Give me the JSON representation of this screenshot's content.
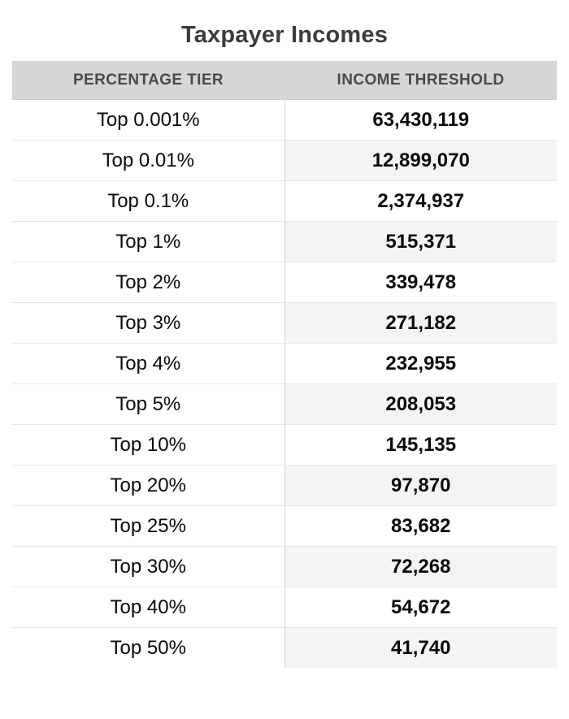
{
  "title": "Taxpayer Incomes",
  "table": {
    "columns": {
      "tier_label": "PERCENTAGE TIER",
      "threshold_label": "INCOME THRESHOLD"
    },
    "rows": [
      {
        "tier": "Top 0.001%",
        "threshold": "63,430,119"
      },
      {
        "tier": "Top 0.01%",
        "threshold": "12,899,070"
      },
      {
        "tier": "Top 0.1%",
        "threshold": "2,374,937"
      },
      {
        "tier": "Top 1%",
        "threshold": "515,371"
      },
      {
        "tier": "Top 2%",
        "threshold": "339,478"
      },
      {
        "tier": "Top 3%",
        "threshold": "271,182"
      },
      {
        "tier": "Top 4%",
        "threshold": "232,955"
      },
      {
        "tier": "Top 5%",
        "threshold": "208,053"
      },
      {
        "tier": "Top 10%",
        "threshold": "145,135"
      },
      {
        "tier": "Top 20%",
        "threshold": "97,870"
      },
      {
        "tier": "Top 25%",
        "threshold": "83,682"
      },
      {
        "tier": "Top 30%",
        "threshold": "72,268"
      },
      {
        "tier": "Top 40%",
        "threshold": "54,672"
      },
      {
        "tier": "Top 50%",
        "threshold": "41,740"
      }
    ]
  },
  "colors": {
    "header_background": "#d7d6d4",
    "header_text": "#4b4a48",
    "title_text": "#3c3c3c",
    "body_text": "#0a0a0a",
    "stripe_background": "#f5f4f2",
    "row_border": "#eae8e6",
    "column_divider": "#d9d7d5",
    "page_background": "#ffffff"
  },
  "chart_data": {
    "type": "table",
    "title": "Taxpayer Incomes",
    "columns": [
      "PERCENTAGE TIER",
      "INCOME THRESHOLD"
    ],
    "categories": [
      "Top 0.001%",
      "Top 0.01%",
      "Top 0.1%",
      "Top 1%",
      "Top 2%",
      "Top 3%",
      "Top 4%",
      "Top 5%",
      "Top 10%",
      "Top 20%",
      "Top 25%",
      "Top 30%",
      "Top 40%",
      "Top 50%"
    ],
    "values": [
      63430119,
      12899070,
      2374937,
      515371,
      339478,
      271182,
      232955,
      208053,
      145135,
      97870,
      83682,
      72268,
      54672,
      41740
    ],
    "layout": {
      "striped_column": "INCOME THRESHOLD",
      "stripe_pattern": "every second data row starting with row 2",
      "alignment": "center"
    }
  }
}
